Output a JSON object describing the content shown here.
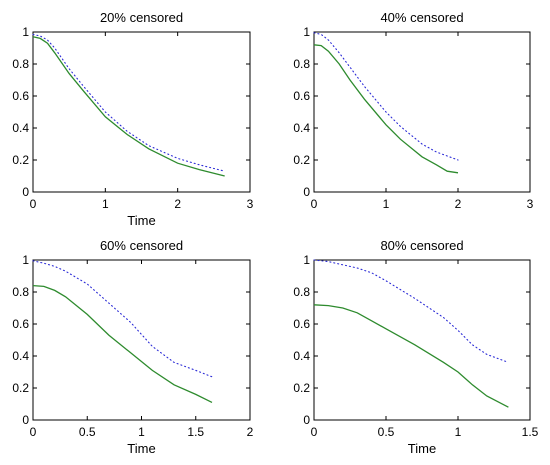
{
  "chart_data": [
    {
      "type": "line",
      "title": "20% censored",
      "xlabel": "Time",
      "ylabel": "",
      "xlim": [
        0,
        3
      ],
      "ylim": [
        0,
        1
      ],
      "xticks": [
        "0",
        "1",
        "2",
        "3"
      ],
      "yticks": [
        "0",
        "0.2",
        "0.4",
        "0.6",
        "0.8",
        "1"
      ],
      "series": [
        {
          "style": "solid",
          "color": "#2e8b2e",
          "x": [
            0,
            0.1,
            0.2,
            0.3,
            0.5,
            0.7,
            1.0,
            1.3,
            1.6,
            2.0,
            2.3,
            2.65
          ],
          "y": [
            0.97,
            0.96,
            0.93,
            0.87,
            0.74,
            0.63,
            0.47,
            0.36,
            0.27,
            0.18,
            0.14,
            0.1
          ]
        },
        {
          "style": "dotted",
          "color": "#2b2bd6",
          "x": [
            0,
            0.1,
            0.2,
            0.3,
            0.5,
            0.7,
            1.0,
            1.3,
            1.6,
            2.0,
            2.3,
            2.65
          ],
          "y": [
            0.985,
            0.975,
            0.95,
            0.9,
            0.77,
            0.66,
            0.5,
            0.38,
            0.29,
            0.21,
            0.17,
            0.13
          ]
        }
      ]
    },
    {
      "type": "line",
      "title": "40% censored",
      "xlabel": "",
      "ylabel": "",
      "xlim": [
        0,
        3
      ],
      "ylim": [
        0,
        1
      ],
      "xticks": [
        "0",
        "1",
        "2",
        "3"
      ],
      "yticks": [
        "0",
        "0.2",
        "0.4",
        "0.6",
        "0.8",
        "1"
      ],
      "series": [
        {
          "style": "solid",
          "color": "#2e8b2e",
          "x": [
            0,
            0.1,
            0.2,
            0.35,
            0.5,
            0.7,
            1.0,
            1.2,
            1.5,
            1.7,
            1.85,
            2.0
          ],
          "y": [
            0.92,
            0.915,
            0.88,
            0.8,
            0.7,
            0.58,
            0.42,
            0.33,
            0.22,
            0.17,
            0.13,
            0.12
          ]
        },
        {
          "style": "dotted",
          "color": "#2b2bd6",
          "x": [
            0,
            0.1,
            0.2,
            0.35,
            0.5,
            0.7,
            1.0,
            1.2,
            1.5,
            1.7,
            2.0
          ],
          "y": [
            0.995,
            0.985,
            0.95,
            0.87,
            0.78,
            0.66,
            0.5,
            0.41,
            0.3,
            0.25,
            0.2
          ]
        }
      ]
    },
    {
      "type": "line",
      "title": "60% censored",
      "xlabel": "Time",
      "ylabel": "",
      "xlim": [
        0,
        2
      ],
      "ylim": [
        0,
        1
      ],
      "xticks": [
        "0",
        "0.5",
        "1",
        "1.5",
        "2"
      ],
      "yticks": [
        "0",
        "0.2",
        "0.4",
        "0.6",
        "0.8",
        "1"
      ],
      "series": [
        {
          "style": "solid",
          "color": "#2e8b2e",
          "x": [
            0,
            0.1,
            0.2,
            0.3,
            0.5,
            0.7,
            0.9,
            1.1,
            1.3,
            1.5,
            1.65
          ],
          "y": [
            0.84,
            0.835,
            0.81,
            0.77,
            0.66,
            0.53,
            0.42,
            0.31,
            0.22,
            0.16,
            0.11
          ]
        },
        {
          "style": "dotted",
          "color": "#2b2bd6",
          "x": [
            0,
            0.1,
            0.2,
            0.3,
            0.5,
            0.7,
            0.9,
            1.1,
            1.3,
            1.5,
            1.65
          ],
          "y": [
            0.995,
            0.98,
            0.96,
            0.93,
            0.85,
            0.73,
            0.61,
            0.46,
            0.36,
            0.31,
            0.27
          ]
        }
      ]
    },
    {
      "type": "line",
      "title": "80% censored",
      "xlabel": "Time",
      "ylabel": "",
      "xlim": [
        0,
        1.5
      ],
      "ylim": [
        0,
        1
      ],
      "xticks": [
        "0",
        "0.5",
        "1",
        "1.5"
      ],
      "yticks": [
        "0",
        "0.2",
        "0.4",
        "0.6",
        "0.8",
        "1"
      ],
      "series": [
        {
          "style": "solid",
          "color": "#2e8b2e",
          "x": [
            0,
            0.1,
            0.2,
            0.3,
            0.4,
            0.5,
            0.7,
            0.9,
            1.0,
            1.1,
            1.2,
            1.35
          ],
          "y": [
            0.72,
            0.715,
            0.7,
            0.67,
            0.62,
            0.57,
            0.47,
            0.36,
            0.3,
            0.22,
            0.15,
            0.08
          ]
        },
        {
          "style": "dotted",
          "color": "#2b2bd6",
          "x": [
            0,
            0.1,
            0.2,
            0.3,
            0.4,
            0.5,
            0.7,
            0.9,
            1.0,
            1.1,
            1.2,
            1.35
          ],
          "y": [
            1.0,
            0.99,
            0.97,
            0.95,
            0.92,
            0.87,
            0.76,
            0.64,
            0.56,
            0.47,
            0.41,
            0.36
          ]
        }
      ]
    }
  ]
}
